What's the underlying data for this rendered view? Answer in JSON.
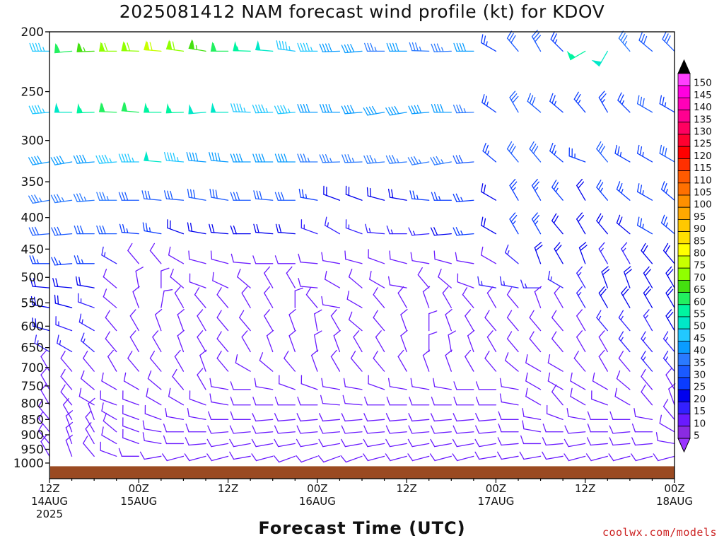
{
  "chart_data": {
    "type": "wind-barb-time-height",
    "title": "2025081412 NAM forecast wind profile (kt) for KDOV",
    "xlabel": "Forecast Time (UTC)",
    "ylabel": "",
    "y_scale": "log",
    "y_inverted": true,
    "y_ticks": [
      200,
      250,
      300,
      350,
      400,
      450,
      500,
      550,
      600,
      650,
      700,
      750,
      800,
      850,
      900,
      950,
      1000
    ],
    "x_ticks": [
      {
        "hours": 0,
        "line1": "12Z",
        "line2": "14AUG",
        "line3": "2025"
      },
      {
        "hours": 12,
        "line1": "00Z",
        "line2": "15AUG",
        "line3": ""
      },
      {
        "hours": 24,
        "line1": "12Z",
        "line2": "",
        "line3": ""
      },
      {
        "hours": 36,
        "line1": "00Z",
        "line2": "16AUG",
        "line3": ""
      },
      {
        "hours": 48,
        "line1": "12Z",
        "line2": "",
        "line3": ""
      },
      {
        "hours": 60,
        "line1": "00Z",
        "line2": "17AUG",
        "line3": ""
      },
      {
        "hours": 72,
        "line1": "12Z",
        "line2": "",
        "line3": ""
      },
      {
        "hours": 84,
        "line1": "00Z",
        "line2": "18AUG",
        "line3": ""
      }
    ],
    "x_range_hours": [
      0,
      84
    ],
    "ground_color": "#9a4a22",
    "colorbar": {
      "levels": [
        5,
        10,
        15,
        20,
        25,
        30,
        35,
        40,
        45,
        50,
        55,
        60,
        65,
        70,
        75,
        80,
        85,
        90,
        95,
        100,
        105,
        110,
        115,
        120,
        125,
        130,
        135,
        140,
        145,
        150
      ],
      "colors": [
        "#8a2be2",
        "#6a1aff",
        "#3320ff",
        "#0000ee",
        "#0a3cff",
        "#1a5aff",
        "#2a7aff",
        "#0a9cff",
        "#22c8ff",
        "#00e8c8",
        "#00f5a0",
        "#22f060",
        "#44e010",
        "#90ff00",
        "#c8ff00",
        "#ffff00",
        "#ffe000",
        "#ffc800",
        "#ffa800",
        "#ff9000",
        "#ff7000",
        "#ff5a00",
        "#ff3000",
        "#ff0000",
        "#ff0030",
        "#ff0060",
        "#ff0090",
        "#ff00b8",
        "#ff00e0",
        "#ff40ff"
      ]
    },
    "barb_times_hours": [
      0,
      3,
      6,
      9,
      12,
      15,
      18,
      21,
      24,
      27,
      30,
      33,
      36,
      39,
      42,
      45,
      48,
      51,
      54,
      57,
      60,
      63,
      66,
      69,
      72,
      75,
      78,
      81,
      84
    ],
    "barb_levels_hpa": [
      215,
      270,
      325,
      375,
      425,
      475,
      520,
      560,
      610,
      660,
      710,
      760,
      805,
      850,
      890,
      930,
      975
    ],
    "wind_rows": [
      {
        "hpa": 215,
        "dir": [
          270,
          265,
          268,
          270,
          272,
          275,
          278,
          280,
          270,
          272,
          275,
          278,
          270,
          268,
          265,
          270,
          270,
          272,
          268,
          270,
          300,
          320,
          330,
          315,
          240,
          210,
          320,
          310,
          315
        ],
        "spd": [
          45,
          60,
          65,
          70,
          70,
          72,
          70,
          65,
          60,
          55,
          50,
          45,
          45,
          40,
          40,
          35,
          40,
          35,
          35,
          40,
          25,
          30,
          30,
          25,
          55,
          50,
          35,
          30,
          30
        ]
      },
      {
        "hpa": 270,
        "dir": [
          265,
          270,
          268,
          272,
          275,
          270,
          268,
          265,
          270,
          272,
          268,
          265,
          270,
          270,
          265,
          260,
          260,
          265,
          270,
          268,
          305,
          330,
          310,
          310,
          320,
          330,
          315,
          300,
          300
        ],
        "spd": [
          45,
          50,
          55,
          60,
          60,
          55,
          55,
          50,
          50,
          45,
          45,
          45,
          40,
          40,
          40,
          40,
          40,
          40,
          40,
          35,
          25,
          30,
          30,
          25,
          25,
          25,
          25,
          30,
          25
        ]
      },
      {
        "hpa": 325,
        "dir": [
          260,
          260,
          265,
          265,
          270,
          275,
          275,
          275,
          275,
          270,
          270,
          270,
          270,
          268,
          268,
          265,
          265,
          260,
          260,
          265,
          310,
          320,
          320,
          310,
          290,
          320,
          300,
          300,
          300
        ],
        "spd": [
          40,
          40,
          40,
          45,
          45,
          50,
          45,
          40,
          40,
          40,
          40,
          40,
          35,
          35,
          35,
          35,
          35,
          35,
          35,
          30,
          25,
          30,
          30,
          25,
          25,
          30,
          25,
          25,
          30
        ]
      },
      {
        "hpa": 375,
        "dir": [
          260,
          262,
          265,
          270,
          270,
          275,
          275,
          280,
          280,
          270,
          275,
          270,
          280,
          290,
          290,
          285,
          280,
          275,
          270,
          265,
          300,
          330,
          330,
          320,
          330,
          320,
          310,
          300,
          310
        ],
        "spd": [
          35,
          35,
          35,
          35,
          30,
          30,
          30,
          30,
          30,
          30,
          30,
          30,
          25,
          20,
          20,
          20,
          20,
          25,
          25,
          25,
          20,
          25,
          25,
          25,
          20,
          25,
          25,
          25,
          25
        ]
      },
      {
        "hpa": 425,
        "dir": [
          265,
          265,
          270,
          270,
          275,
          280,
          290,
          280,
          275,
          270,
          275,
          275,
          290,
          300,
          290,
          275,
          270,
          265,
          265,
          265,
          300,
          330,
          330,
          320,
          330,
          320,
          310,
          300,
          310
        ],
        "spd": [
          30,
          30,
          30,
          30,
          25,
          25,
          20,
          20,
          20,
          20,
          20,
          20,
          15,
          15,
          15,
          15,
          15,
          15,
          20,
          25,
          20,
          25,
          25,
          20,
          20,
          20,
          20,
          25,
          25
        ]
      },
      {
        "hpa": 475,
        "dir": [
          270,
          265,
          270,
          300,
          320,
          320,
          300,
          285,
          285,
          275,
          270,
          270,
          275,
          280,
          285,
          290,
          285,
          280,
          285,
          280,
          300,
          310,
          340,
          330,
          340,
          330,
          330,
          320,
          320
        ],
        "spd": [
          25,
          25,
          25,
          15,
          10,
          10,
          10,
          10,
          10,
          10,
          10,
          10,
          10,
          10,
          10,
          10,
          10,
          10,
          10,
          10,
          10,
          15,
          20,
          20,
          20,
          15,
          15,
          20,
          20
        ]
      },
      {
        "hpa": 520,
        "dir": [
          275,
          275,
          280,
          310,
          350,
          0,
          310,
          290,
          295,
          310,
          330,
          330,
          275,
          300,
          310,
          300,
          280,
          320,
          310,
          290,
          280,
          280,
          270,
          300,
          330,
          340,
          340,
          330,
          330
        ],
        "spd": [
          20,
          20,
          20,
          10,
          10,
          10,
          10,
          10,
          10,
          10,
          10,
          10,
          10,
          10,
          10,
          10,
          10,
          10,
          10,
          10,
          15,
          15,
          15,
          15,
          15,
          20,
          20,
          20,
          20
        ]
      },
      {
        "hpa": 560,
        "dir": [
          280,
          285,
          290,
          310,
          340,
          10,
          330,
          320,
          320,
          330,
          330,
          0,
          320,
          280,
          300,
          320,
          330,
          340,
          330,
          320,
          330,
          320,
          340,
          330,
          330,
          330,
          330,
          330,
          330
        ],
        "spd": [
          20,
          20,
          15,
          10,
          10,
          10,
          10,
          10,
          10,
          10,
          10,
          10,
          10,
          10,
          10,
          10,
          10,
          10,
          10,
          10,
          10,
          10,
          10,
          10,
          15,
          20,
          20,
          20,
          20
        ]
      },
      {
        "hpa": 610,
        "dir": [
          285,
          290,
          300,
          320,
          330,
          340,
          340,
          330,
          320,
          320,
          330,
          340,
          350,
          330,
          310,
          320,
          340,
          0,
          340,
          330,
          320,
          320,
          320,
          320,
          330,
          320,
          320,
          330,
          330
        ],
        "spd": [
          20,
          15,
          15,
          10,
          10,
          10,
          10,
          10,
          10,
          10,
          10,
          10,
          10,
          10,
          10,
          10,
          10,
          10,
          10,
          10,
          10,
          10,
          10,
          10,
          10,
          15,
          15,
          15,
          20
        ]
      },
      {
        "hpa": 660,
        "dir": [
          300,
          300,
          310,
          320,
          330,
          330,
          340,
          330,
          320,
          330,
          340,
          340,
          350,
          340,
          330,
          330,
          340,
          0,
          350,
          340,
          330,
          320,
          320,
          320,
          330,
          330,
          320,
          320,
          320
        ],
        "spd": [
          15,
          15,
          15,
          10,
          10,
          10,
          10,
          10,
          10,
          10,
          10,
          10,
          10,
          10,
          10,
          10,
          10,
          10,
          10,
          10,
          10,
          10,
          10,
          10,
          10,
          10,
          15,
          15,
          15
        ]
      },
      {
        "hpa": 710,
        "dir": [
          330,
          320,
          320,
          330,
          320,
          320,
          330,
          340,
          320,
          300,
          310,
          320,
          340,
          330,
          320,
          320,
          330,
          340,
          340,
          330,
          320,
          310,
          300,
          300,
          320,
          330,
          320,
          320,
          320
        ],
        "spd": [
          10,
          10,
          10,
          10,
          10,
          10,
          10,
          10,
          10,
          10,
          10,
          10,
          10,
          10,
          10,
          10,
          10,
          10,
          10,
          10,
          10,
          10,
          10,
          10,
          10,
          10,
          10,
          15,
          15
        ]
      },
      {
        "hpa": 760,
        "dir": [
          330,
          320,
          310,
          300,
          300,
          310,
          320,
          330,
          280,
          270,
          280,
          290,
          290,
          280,
          280,
          290,
          280,
          280,
          280,
          270,
          270,
          280,
          300,
          300,
          300,
          300,
          310,
          320,
          330
        ],
        "spd": [
          10,
          10,
          10,
          10,
          10,
          10,
          10,
          10,
          10,
          10,
          10,
          10,
          10,
          10,
          10,
          10,
          10,
          10,
          10,
          10,
          10,
          10,
          10,
          10,
          10,
          10,
          10,
          10,
          10
        ]
      },
      {
        "hpa": 805,
        "dir": [
          330,
          320,
          300,
          290,
          290,
          300,
          300,
          290,
          280,
          270,
          270,
          270,
          270,
          275,
          275,
          270,
          270,
          270,
          270,
          270,
          270,
          280,
          300,
          320,
          300,
          290,
          300,
          320,
          340
        ],
        "spd": [
          10,
          10,
          10,
          10,
          10,
          10,
          10,
          10,
          10,
          10,
          10,
          10,
          10,
          10,
          10,
          10,
          10,
          10,
          10,
          10,
          10,
          10,
          10,
          10,
          10,
          10,
          10,
          10,
          10
        ]
      },
      {
        "hpa": 850,
        "dir": [
          320,
          330,
          340,
          300,
          290,
          290,
          280,
          280,
          270,
          270,
          265,
          265,
          265,
          265,
          265,
          265,
          265,
          265,
          265,
          265,
          265,
          270,
          280,
          290,
          280,
          270,
          270,
          280,
          320
        ],
        "spd": [
          10,
          10,
          10,
          10,
          10,
          10,
          10,
          10,
          10,
          10,
          10,
          10,
          10,
          10,
          10,
          10,
          10,
          10,
          10,
          10,
          10,
          10,
          10,
          10,
          10,
          10,
          10,
          10,
          10
        ]
      },
      {
        "hpa": 890,
        "dir": [
          320,
          340,
          330,
          310,
          290,
          280,
          270,
          270,
          265,
          265,
          265,
          265,
          265,
          265,
          265,
          265,
          265,
          265,
          265,
          265,
          265,
          270,
          280,
          270,
          265,
          270,
          265,
          270,
          300
        ],
        "spd": [
          10,
          10,
          10,
          10,
          10,
          10,
          10,
          10,
          10,
          10,
          10,
          10,
          10,
          10,
          10,
          10,
          10,
          10,
          10,
          10,
          10,
          10,
          10,
          10,
          10,
          10,
          10,
          10,
          10
        ]
      },
      {
        "hpa": 930,
        "dir": [
          320,
          340,
          330,
          300,
          290,
          280,
          270,
          265,
          260,
          260,
          260,
          260,
          260,
          260,
          260,
          260,
          260,
          260,
          260,
          260,
          260,
          265,
          270,
          265,
          260,
          265,
          265,
          265,
          280
        ],
        "spd": [
          10,
          10,
          10,
          10,
          10,
          10,
          10,
          10,
          10,
          10,
          10,
          10,
          10,
          10,
          10,
          10,
          10,
          10,
          10,
          10,
          10,
          10,
          10,
          10,
          10,
          10,
          10,
          10,
          10
        ]
      },
      {
        "hpa": 975,
        "dir": [
          330,
          340,
          320,
          290,
          270,
          260,
          255,
          255,
          255,
          260,
          255,
          250,
          250,
          250,
          250,
          255,
          255,
          255,
          255,
          255,
          260,
          260,
          260,
          260,
          255,
          255,
          255,
          255,
          255
        ],
        "spd": [
          10,
          10,
          10,
          10,
          10,
          10,
          10,
          10,
          10,
          10,
          10,
          10,
          10,
          10,
          10,
          10,
          10,
          10,
          10,
          10,
          10,
          10,
          10,
          10,
          10,
          10,
          10,
          10,
          10
        ]
      }
    ]
  },
  "credit": "coolwx.com/models"
}
